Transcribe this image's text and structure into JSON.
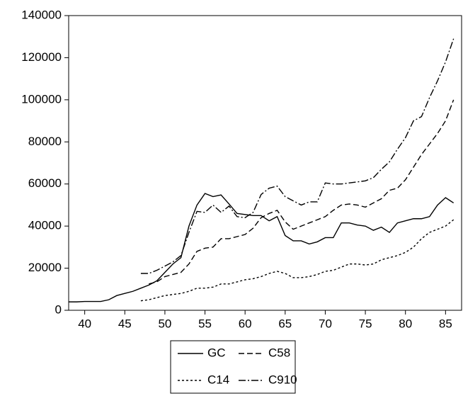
{
  "chart_data": {
    "type": "line",
    "x": [
      38,
      39,
      40,
      41,
      42,
      43,
      44,
      45,
      46,
      47,
      48,
      49,
      50,
      51,
      52,
      53,
      54,
      55,
      56,
      57,
      58,
      59,
      60,
      61,
      62,
      63,
      64,
      65,
      66,
      67,
      68,
      69,
      70,
      71,
      72,
      73,
      74,
      75,
      76,
      77,
      78,
      79,
      80,
      81,
      82,
      83,
      84,
      85,
      86
    ],
    "series": [
      {
        "name": "GC",
        "color": "#000000",
        "line_style": "solid",
        "values": [
          4000,
          4000,
          4200,
          4200,
          4200,
          5000,
          7000,
          8000,
          9000,
          10500,
          12000,
          14000,
          18000,
          22000,
          25000,
          40000,
          50000,
          55500,
          54000,
          54800,
          50500,
          46000,
          45500,
          45000,
          45000,
          42500,
          44500,
          35500,
          33000,
          33000,
          31500,
          32500,
          34500,
          34500,
          41500,
          41500,
          40500,
          40000,
          38000,
          39500,
          37000,
          41500,
          42500,
          43500,
          43500,
          44500,
          50000,
          53500,
          51000
        ]
      },
      {
        "name": "C58",
        "color": "#000000",
        "line_style": "dashed",
        "values": [
          null,
          null,
          null,
          null,
          null,
          null,
          null,
          null,
          null,
          null,
          12500,
          13500,
          16000,
          17000,
          18000,
          22000,
          28000,
          29500,
          30000,
          34000,
          34000,
          35000,
          36000,
          39000,
          44000,
          46000,
          47500,
          42000,
          38500,
          40000,
          41500,
          43000,
          44500,
          47500,
          50000,
          50500,
          50000,
          49000,
          51000,
          53000,
          57000,
          58000,
          62000,
          68000,
          74000,
          79000,
          84000,
          90000,
          100000
        ]
      },
      {
        "name": "C14",
        "color": "#000000",
        "line_style": "dotted",
        "values": [
          null,
          null,
          null,
          null,
          null,
          null,
          null,
          null,
          null,
          4500,
          5000,
          6000,
          7000,
          7500,
          8000,
          9000,
          10500,
          10500,
          11000,
          12500,
          12500,
          13500,
          14500,
          15000,
          16000,
          17500,
          18500,
          17500,
          15500,
          15500,
          16000,
          17000,
          18500,
          19000,
          20500,
          22000,
          22000,
          21500,
          22000,
          24000,
          25000,
          26000,
          27500,
          30000,
          34000,
          37000,
          38500,
          40000,
          43000
        ]
      },
      {
        "name": "C910",
        "color": "#000000",
        "line_style": "dashdot",
        "values": [
          null,
          null,
          null,
          null,
          null,
          null,
          null,
          null,
          null,
          17500,
          17500,
          19000,
          21000,
          23000,
          26000,
          37000,
          47000,
          46500,
          50000,
          46500,
          49500,
          44500,
          44000,
          46500,
          55000,
          58000,
          59000,
          54000,
          52000,
          50000,
          51500,
          51500,
          60500,
          60000,
          60000,
          60500,
          61000,
          61500,
          63000,
          67000,
          70500,
          76500,
          82000,
          90000,
          92000,
          101000,
          109000,
          118000,
          129000
        ]
      }
    ],
    "xlim": [
      38,
      87
    ],
    "xticks": [
      40,
      45,
      50,
      55,
      60,
      65,
      70,
      75,
      80,
      85
    ],
    "ylim": [
      0,
      140000
    ],
    "yticks": [
      0,
      20000,
      40000,
      60000,
      80000,
      100000,
      120000,
      140000
    ],
    "legend": "bottom"
  }
}
